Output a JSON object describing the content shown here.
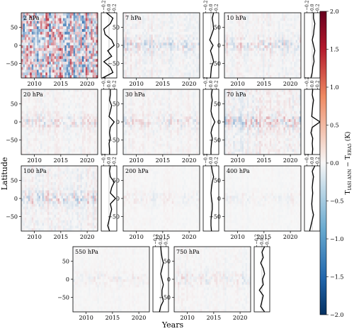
{
  "figure": {
    "ylabel": "Latitude",
    "xlabel": "Years",
    "colorbar_label": "T₁ₐₛᵢ ANN − Tₑᵣₐ₅ (K)",
    "colorbar_label_main": "T",
    "colorbar_sub1": "IASI ANN",
    "colorbar_minus": " − T",
    "colorbar_sub2": "ERA5",
    "colorbar_units": " (K)"
  },
  "chart_data": {
    "type": "heatmap",
    "panels": [
      {
        "label": "2 hPa",
        "amplitude": 1.8,
        "profile": [
          -0.1,
          0.15,
          0.05,
          -0.2,
          -0.15,
          0.1,
          0.2,
          -0.05,
          0.1,
          -0.2,
          0.05,
          0.15,
          -0.25
        ]
      },
      {
        "label": "7 hPa",
        "amplitude": 0.7,
        "profile": [
          0.1,
          0.05,
          0.08,
          0.1,
          0.03,
          -0.05,
          0.08,
          -0.02,
          0.05,
          0.1,
          0.02,
          0.0,
          -0.02
        ]
      },
      {
        "label": "10 hPa",
        "amplitude": 0.6,
        "profile": [
          0.05,
          0.05,
          0.1,
          0.07,
          0.05,
          0.0,
          0.05,
          0.1,
          0.05,
          0.07,
          0.02,
          0.0,
          -0.05
        ]
      },
      {
        "label": "20 hPa",
        "amplitude": 0.55,
        "profile": [
          0.05,
          0.05,
          0.02,
          0.1,
          0.05,
          0.0,
          0.2,
          0.05,
          0.02,
          0.05,
          0.0,
          0.02,
          0.02
        ]
      },
      {
        "label": "30 hPa",
        "amplitude": 0.5,
        "profile": [
          0.05,
          0.02,
          0.05,
          0.02,
          0.0,
          0.05,
          0.15,
          0.05,
          0.0,
          0.05,
          0.02,
          0.0,
          0.0
        ]
      },
      {
        "label": "70 hPa",
        "amplitude": 1.0,
        "profile": [
          0.02,
          0.0,
          0.05,
          0.02,
          0.0,
          -0.02,
          0.3,
          0.0,
          -0.05,
          0.02,
          0.0,
          0.02,
          0.0
        ]
      },
      {
        "label": "100 hPa",
        "amplitude": 0.8,
        "profile": [
          0.05,
          0.02,
          0.05,
          0.2,
          0.1,
          0.05,
          0.25,
          0.05,
          0.1,
          0.05,
          0.0,
          -0.05,
          0.02
        ]
      },
      {
        "label": "200 hPa",
        "amplitude": 0.25,
        "profile": [
          0.02,
          0.05,
          0.1,
          0.05,
          0.02,
          0.0,
          0.02,
          0.05,
          0.05,
          0.02,
          0.0,
          0.0,
          0.02
        ]
      },
      {
        "label": "400 hPa",
        "amplitude": 0.2,
        "profile": [
          0.1,
          0.0,
          0.05,
          0.02,
          0.0,
          0.02,
          0.0,
          -0.02,
          0.0,
          0.05,
          0.0,
          -0.05,
          -0.1
        ]
      },
      {
        "label": "550 hPa",
        "amplitude": 0.25,
        "profile": [
          0.0,
          0.02,
          0.05,
          0.1,
          0.05,
          0.0,
          0.05,
          0.1,
          0.05,
          0.05,
          0.1,
          0.0,
          -0.05
        ]
      },
      {
        "label": "750 hPa",
        "amplitude": 0.4,
        "profile": [
          0.1,
          0.0,
          0.05,
          -0.05,
          0.05,
          0.1,
          0.02,
          0.05,
          -0.1,
          0.05,
          0.0,
          -0.05,
          0.1
        ]
      }
    ],
    "x_ticks": [
      "2010",
      "2015",
      "2020"
    ],
    "x_range": [
      2007.5,
      2022
    ],
    "y_ticks": [
      "50",
      "0",
      "−50"
    ],
    "y_range": [
      -90,
      90
    ],
    "profile_ticks": [
      "−0.2",
      "0.0",
      "0.2"
    ],
    "colorbar": {
      "range": [
        -2.0,
        2.0
      ],
      "ticks": [
        "2.0",
        "1.5",
        "1.0",
        "0.5",
        "0.0",
        "−0.5",
        "−1.0",
        "−1.5",
        "−2.0"
      ],
      "colors": {
        "neg": "#2166ac",
        "mid": "#f7f7f7",
        "pos": "#b2182b"
      }
    }
  }
}
